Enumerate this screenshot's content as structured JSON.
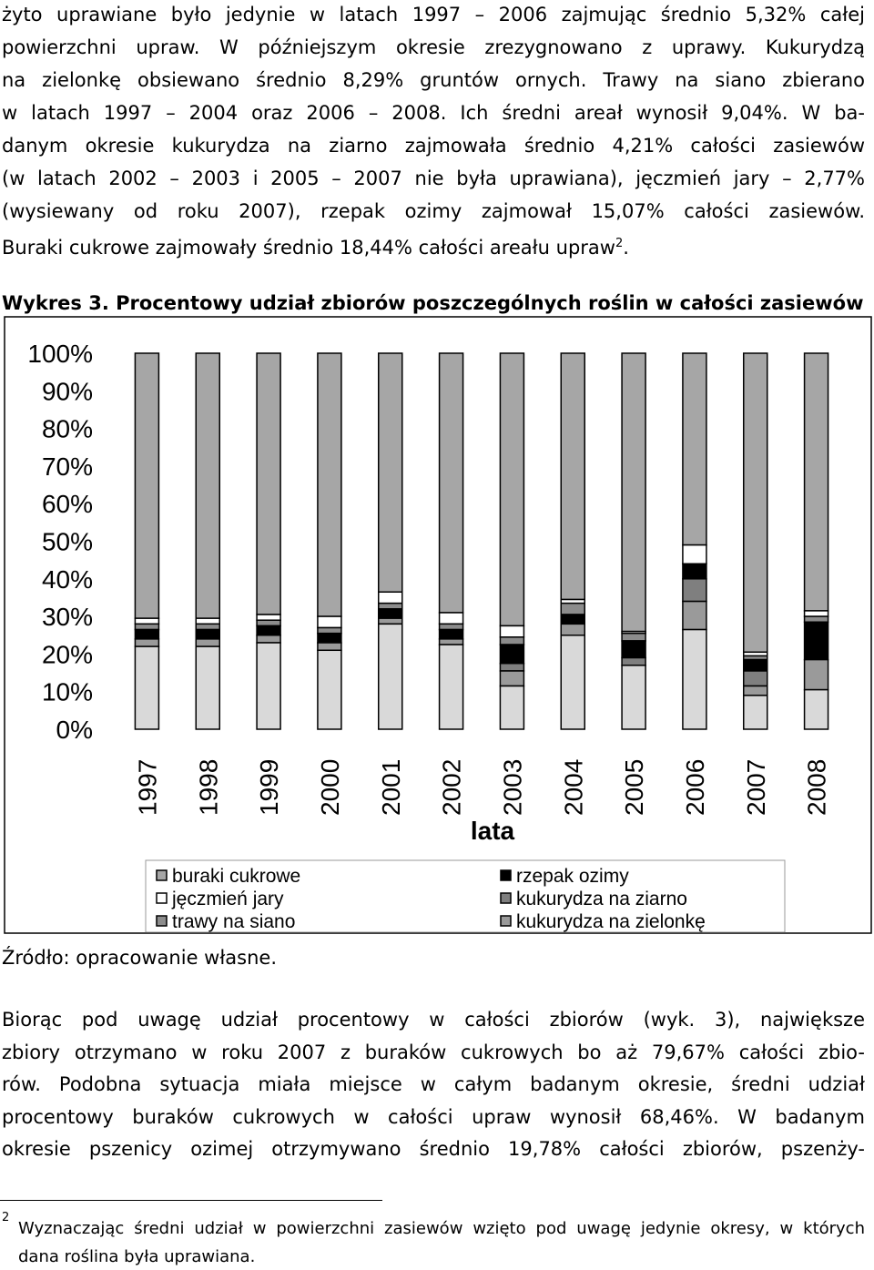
{
  "intro": {
    "lines": [
      "żyto uprawiane było jedynie w latach 1997 – 2006 zajmując średnio 5,32% całej",
      "powierzchni upraw. W późniejszym okresie zrezygnowano z uprawy. Kukurydzą",
      "na zielonkę obsiewano średnio 8,29% gruntów ornych. Trawy na siano zbierano",
      "w latach 1997 – 2004 oraz 2006 – 2008. Ich średni areał wynosił 9,04%. W ba-",
      "danym okresie kukurydza na ziarno zajmowała średnio 4,21% całości zasiewów",
      "(w latach 2002 – 2003 i 2005 – 2007 nie była uprawiana), jęczmień jary – 2,77%",
      "(wysiewany od roku 2007), rzepak ozimy zajmował 15,07% całości zasiewów."
    ],
    "last_line": {
      "text": "Buraki cukrowe zajmowały średnio 18,44% całości areału upraw",
      "sup": "2",
      "end": "."
    }
  },
  "figure_caption": "Wykres 3. Procentowy udział zbiorów poszczególnych roślin w całości zasiewów",
  "chart_data": {
    "type": "stacked_bar",
    "categories": [
      "1997",
      "1998",
      "1999",
      "2000",
      "2001",
      "2002",
      "2003",
      "2004",
      "2005",
      "2006",
      "2007",
      "2008"
    ],
    "x_label": "lata",
    "ylim": [
      0,
      100
    ],
    "yticks": [
      {
        "value": 0,
        "label": "0%"
      },
      {
        "value": 10,
        "label": "10%"
      },
      {
        "value": 20,
        "label": "20%"
      },
      {
        "value": 30,
        "label": "30%"
      },
      {
        "value": 40,
        "label": "40%"
      },
      {
        "value": 50,
        "label": "50%"
      },
      {
        "value": 60,
        "label": "60%"
      },
      {
        "value": 70,
        "label": "70%"
      },
      {
        "value": 80,
        "label": "80%"
      },
      {
        "value": 90,
        "label": "90%"
      },
      {
        "value": 100,
        "label": "100%"
      }
    ],
    "series": [
      {
        "name": "buraki cukrowe",
        "color": "#a6a6a6",
        "values": [
          70.5,
          70.5,
          69.5,
          70,
          63.5,
          69,
          72.5,
          65.5,
          74,
          51,
          79.5,
          68.5
        ]
      },
      {
        "name": "jęczmień jary",
        "color": "#ffffff",
        "values": [
          1.5,
          1.5,
          1.5,
          3,
          3,
          3,
          3,
          1,
          0.5,
          5,
          1,
          1.5
        ]
      },
      {
        "name": "trawy na siano",
        "color": "#8c8c8c",
        "values": [
          1.5,
          1.5,
          1.5,
          1.5,
          1.5,
          1.5,
          2,
          3,
          2,
          0,
          1,
          1.5
        ]
      },
      {
        "name": "rzepak ozimy",
        "color": "#000000",
        "values": [
          2.5,
          2.5,
          2.5,
          2.5,
          2.5,
          2.5,
          5,
          2.5,
          4.5,
          4,
          3,
          10
        ]
      },
      {
        "name": "kukurydza na ziarno",
        "color": "#7f7f7f",
        "values": [
          0,
          0,
          0,
          0,
          0,
          0,
          2,
          0,
          2,
          6,
          4,
          0
        ]
      },
      {
        "name": "kukurydza na zielonkę",
        "color": "#9a9a9a",
        "values": [
          2,
          2,
          2,
          2,
          1.5,
          1.5,
          4,
          3,
          0,
          7.5,
          2.5,
          8
        ]
      },
      {
        "color": "#d9d9d9",
        "values": [
          22,
          22,
          23,
          21,
          28,
          22.5,
          11.5,
          25,
          17,
          26.5,
          9,
          10.5
        ]
      }
    ]
  },
  "source": "Źródło: opracowanie własne.",
  "body": {
    "lines": [
      "Biorąc pod uwagę udział procentowy w całości zbiorów (wyk. 3), największe",
      "zbiory otrzymano w roku 2007 z buraków cukrowych bo aż 79,67% całości zbio-",
      "rów. Podobna sytuacja miała miejsce w całym badanym okresie, średni udział",
      "procentowy buraków cukrowych w całości upraw wynosił 68,46%. W badanym",
      "okresie pszenicy ozimej otrzymywano średnio 19,78% całości zbiorów, pszenży-"
    ]
  },
  "footnote": {
    "mark": "2",
    "lines": [
      "Wyznaczając średni udział w powierzchni zasiewów wzięto pod uwagę jedynie okresy, w których",
      "dana roślina była uprawiana."
    ]
  }
}
